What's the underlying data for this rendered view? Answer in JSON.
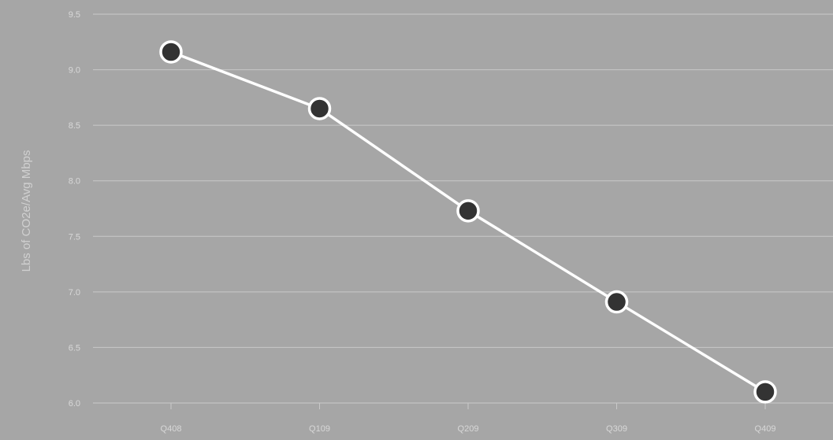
{
  "chart_data": {
    "type": "line",
    "title": "",
    "xlabel": "",
    "ylabel": "Lbs of CO2e/Avg Mbps",
    "categories": [
      "Q408",
      "Q109",
      "Q209",
      "Q309",
      "Q409"
    ],
    "series": [
      {
        "values": [
          9.16,
          8.65,
          7.73,
          6.91,
          6.1
        ]
      }
    ],
    "ylim": [
      6.0,
      9.5
    ],
    "yticks": [
      "6.0",
      "6.5",
      "7.0",
      "7.5",
      "8.0",
      "8.5",
      "9.0",
      "9.5"
    ],
    "grid": true,
    "legend": "none",
    "colors": {
      "background": "#a6a6a6",
      "grid": "#c9c9c9",
      "line": "#ffffff",
      "marker_fill": "#333333",
      "text": "#d8d8d8"
    }
  }
}
